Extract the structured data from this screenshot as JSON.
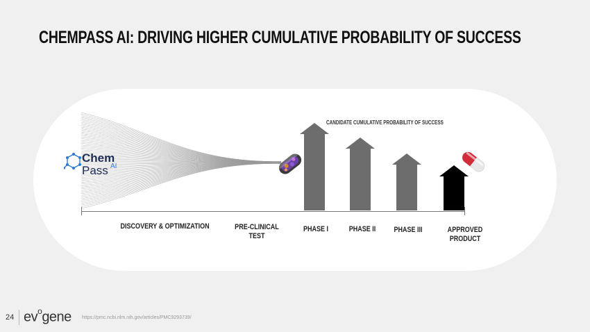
{
  "slide": {
    "title": "CHEMPASS AI: DRIVING HIGHER CUMULATIVE PROBABILITY OF SUCCESS",
    "page_number": "24",
    "company_logo": "evogene",
    "source_url": "https://pmc.ncbi.nlm.nih.gov/articles/PMC9293739/"
  },
  "logo": {
    "chem": "Chem",
    "pass": "Pass",
    "ai": "AI"
  },
  "diagram": {
    "arrow_caption": "CANDIDATE CUMULATIVE PROBABILITY OF SUCCESS",
    "stages": [
      {
        "line1": "DISCOVERY & OPTIMIZATION",
        "line2": ""
      },
      {
        "line1": "PRE-CLINICAL",
        "line2": "TEST"
      },
      {
        "line1": "PHASE I",
        "line2": ""
      },
      {
        "line1": "PHASE II",
        "line2": ""
      },
      {
        "line1": "PHASE III",
        "line2": ""
      },
      {
        "line1": "APPROVED",
        "line2": "PRODUCT"
      }
    ],
    "arrow_colors": [
      "#6d6d6d",
      "#6d6d6d",
      "#6d6d6d",
      "#000000"
    ],
    "fan_color": "#9a9a9a"
  }
}
